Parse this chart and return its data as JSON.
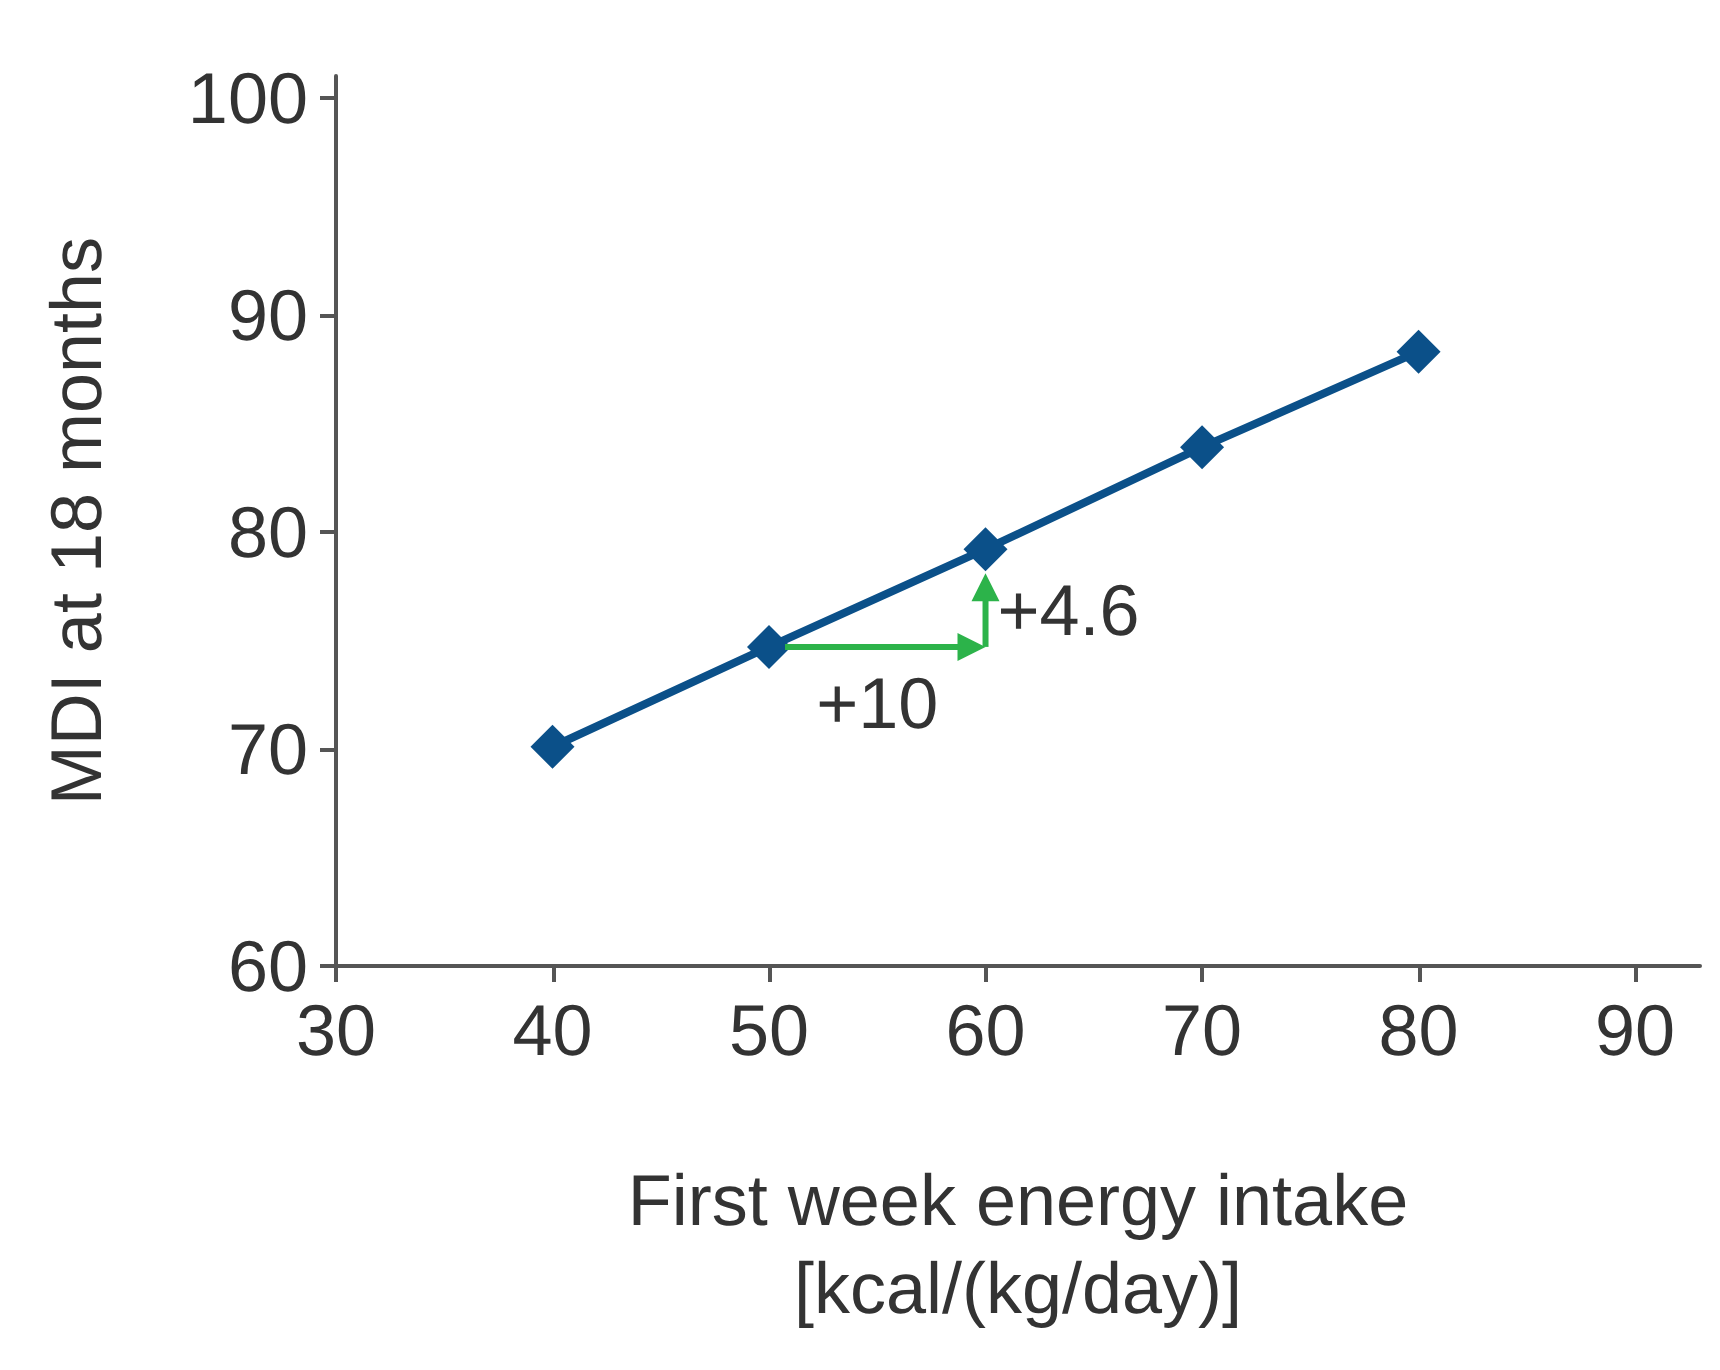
{
  "chart_data": {
    "type": "line",
    "xlabel": "First week energy intake\n[kcal/(kg/day)]",
    "ylabel": "MDI at 18 months",
    "x": [
      40,
      50,
      60,
      70,
      80
    ],
    "series": [
      {
        "color": "#0b5089",
        "values": [
          70.1,
          74.7,
          79.2,
          83.9,
          88.3
        ]
      }
    ],
    "marker": "diamond",
    "line_style": "solid",
    "grid": false,
    "xlim": [
      30,
      93
    ],
    "xticks": [
      30,
      40,
      50,
      60,
      70,
      80,
      90
    ],
    "ylim": [
      60,
      101
    ],
    "yticks": [
      60,
      70,
      80,
      90,
      100
    ],
    "annotations": [
      "+10",
      "+4.6"
    ]
  }
}
